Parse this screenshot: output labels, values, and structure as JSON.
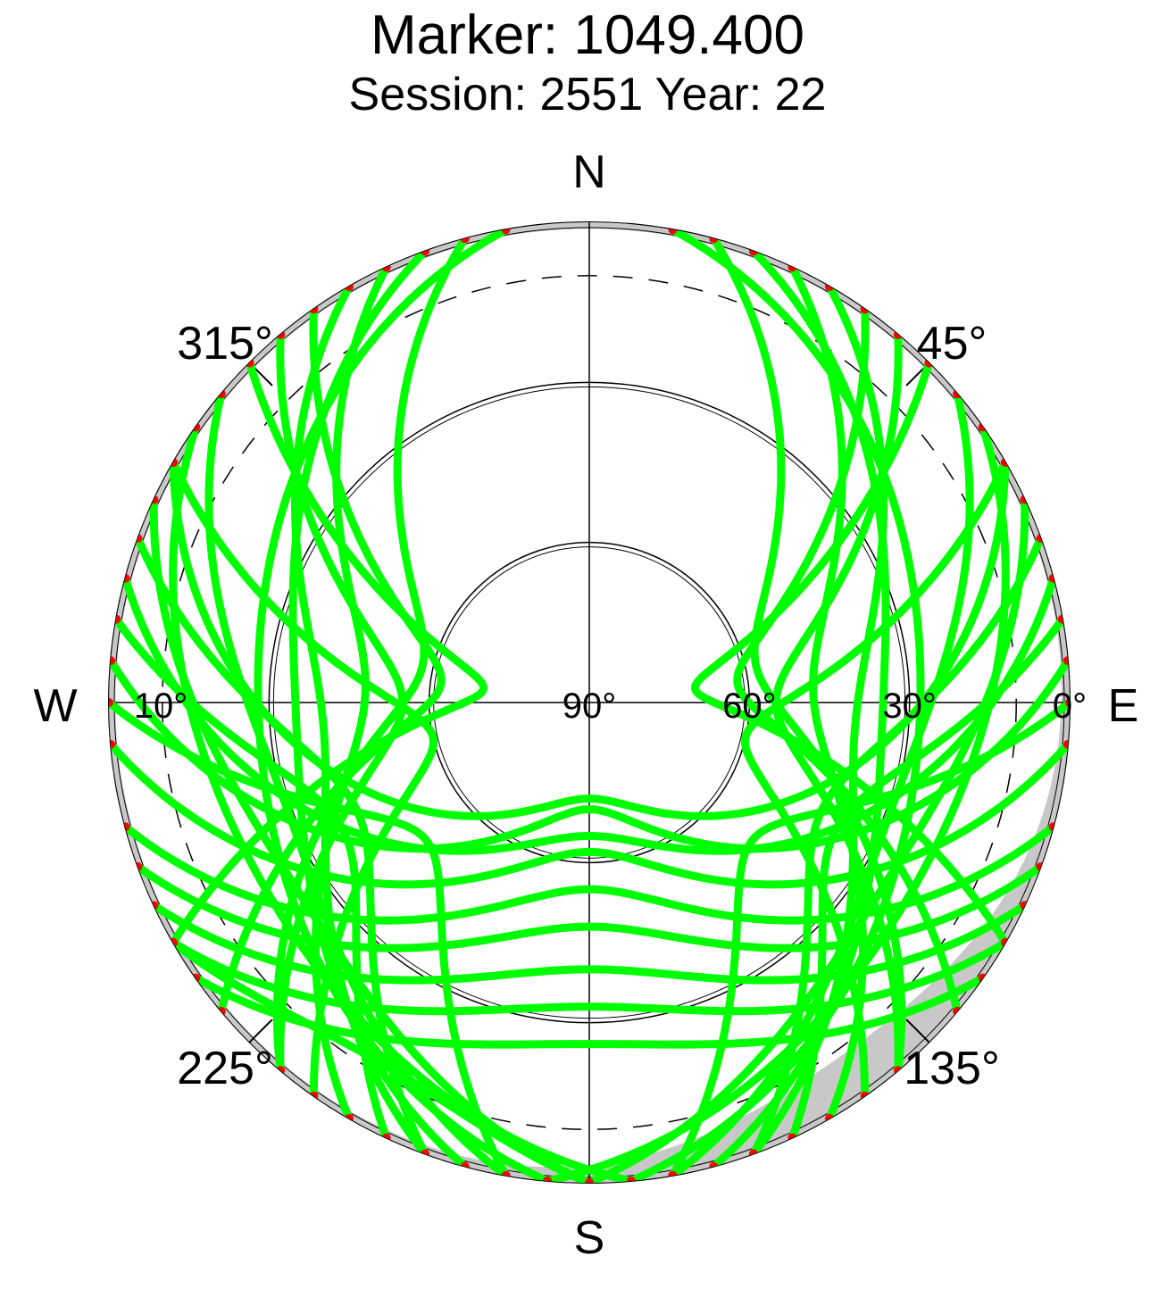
{
  "chart_data": {
    "type": "scatter",
    "projection": "polar-skyplot",
    "title": "Marker: 1049.400",
    "subtitle": "Session: 2551 Year: 22",
    "cardinal_labels": {
      "north": "N",
      "south": "S",
      "east": "E",
      "west": "W"
    },
    "azimuth_labels": [
      {
        "az": 45,
        "text": "45°"
      },
      {
        "az": 135,
        "text": "135°"
      },
      {
        "az": 225,
        "text": "225°"
      },
      {
        "az": 315,
        "text": "315°"
      }
    ],
    "elevation_labels": [
      {
        "el": 0,
        "text": "0°"
      },
      {
        "el": 30,
        "text": "30°"
      },
      {
        "el": 60,
        "text": "60°"
      },
      {
        "el": 90,
        "text": "90°"
      },
      {
        "el": 10,
        "text": "10°",
        "side": "west"
      }
    ],
    "elevation_rings": [
      30,
      60
    ],
    "elevation_mask": 10,
    "colors": {
      "track": "#00ff00",
      "track_end": "#ff0000",
      "obstruction": "#c8c8c8",
      "grid": "#000000"
    },
    "series": [
      {
        "color": "#00ff00",
        "points": [
          [
            48,
            26
          ],
          [
            300,
            5
          ],
          [
            330,
            4
          ],
          [
            300,
            62
          ],
          [
            320,
            35
          ],
          [
            303,
            12
          ],
          [
            340,
            12
          ],
          [
            350,
            8
          ]
        ]
      }
    ]
  }
}
